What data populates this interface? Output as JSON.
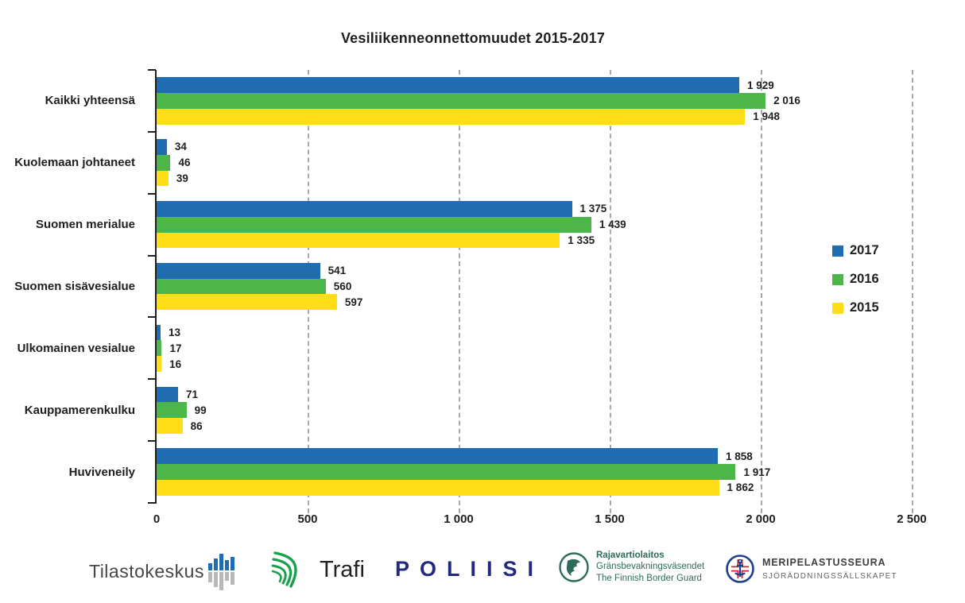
{
  "title": "Vesiliikenneonnettomuudet 2015-2017",
  "colors": {
    "bar_2017": "#1f6cb0",
    "bar_2016": "#4db648",
    "bar_2015": "#ffde17",
    "gridline": "#a9a9a9",
    "axis_text": "#1f1f1f"
  },
  "chart_data": {
    "type": "bar",
    "orientation": "horizontal",
    "title": "Vesiliikenneonnettomuudet 2015-2017",
    "categories": [
      "Kaikki yhteensä",
      "Kuolemaan johtaneet",
      "Suomen merialue",
      "Suomen sisävesialue",
      "Ulkomainen vesialue",
      "Kauppamerenkulku",
      "Huviveneily"
    ],
    "series": [
      {
        "name": "2017",
        "color": "#1f6cb0",
        "values": [
          1929,
          34,
          1375,
          541,
          13,
          71,
          1858
        ],
        "labels": [
          "1 929",
          "34",
          "1 375",
          "541",
          "13",
          "71",
          "1 858"
        ]
      },
      {
        "name": "2016",
        "color": "#4db648",
        "values": [
          2016,
          46,
          1439,
          560,
          17,
          99,
          1917
        ],
        "labels": [
          "2 016",
          "46",
          "1 439",
          "560",
          "17",
          "99",
          "1 917"
        ]
      },
      {
        "name": "2015",
        "color": "#ffde17",
        "values": [
          1948,
          39,
          1335,
          597,
          16,
          86,
          1862
        ],
        "labels": [
          "1 948",
          "39",
          "1 335",
          "597",
          "16",
          "86",
          "1 862"
        ]
      }
    ],
    "xlim": [
      0,
      2500
    ],
    "x_tick_values": [
      0,
      500,
      1000,
      1500,
      2000,
      2500
    ],
    "x_tick_labels": [
      "0",
      "500",
      "1 000",
      "1 500",
      "2 000",
      "2 500"
    ],
    "grid": "vertical-dashed",
    "legend_position": "right",
    "legend_entries": [
      "2017",
      "2016",
      "2015"
    ]
  },
  "footer_logos": {
    "tilastokeskus": {
      "text": "Tilastokeskus"
    },
    "trafi": {
      "text": "Trafi"
    },
    "poliisi": {
      "text": "POLIISI"
    },
    "border_guard": {
      "line1": "Rajavartiolaitos",
      "line2": "Gränsbevakningsväsendet",
      "line3": "The Finnish Border Guard"
    },
    "meripelastusseura": {
      "line1": "MERIPELASTUSSEURA",
      "line2": "SJÖRÄDDNINGSSÄLLSKAPET"
    }
  }
}
